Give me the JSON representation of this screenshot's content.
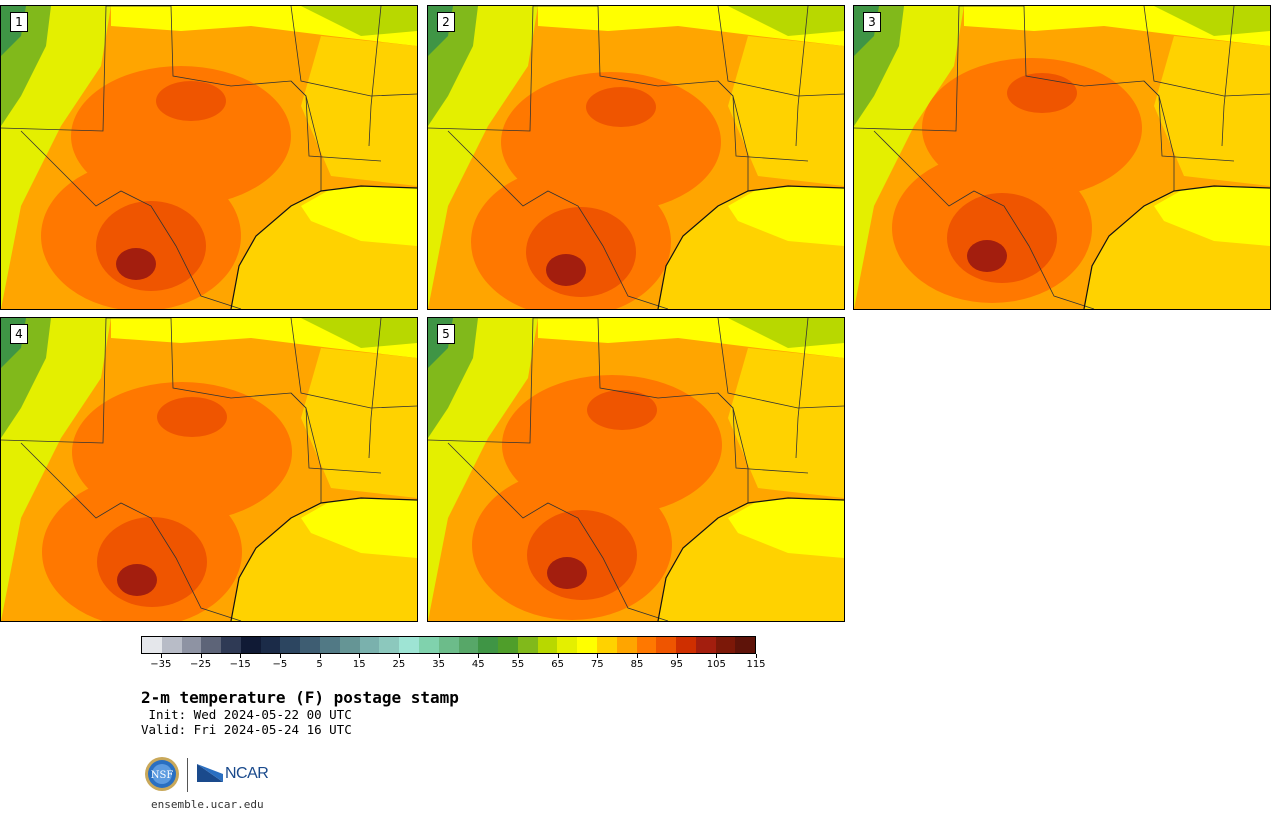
{
  "title": "2-m temperature (F) postage stamp",
  "init_text": " Init: Wed 2024-05-22 00 UTC",
  "valid_text": "Valid: Fri 2024-05-24 16 UTC",
  "site": "ensemble.ucar.edu",
  "logos": {
    "nsf": "NSF",
    "ncar": "NCAR"
  },
  "panels": [
    {
      "label": "1",
      "variant": 0
    },
    {
      "label": "2",
      "variant": 1
    },
    {
      "label": "3",
      "variant": 2
    },
    {
      "label": "4",
      "variant": 3
    },
    {
      "label": "5",
      "variant": 4
    }
  ],
  "colorbar": {
    "colors": [
      "#e5e7eb",
      "#b8bcc7",
      "#8e93a3",
      "#5d6478",
      "#2f3a55",
      "#101a35",
      "#1b2b48",
      "#2c4560",
      "#3e5d72",
      "#517985",
      "#659595",
      "#7ab1ad",
      "#8cc8bd",
      "#9ee4d4",
      "#80d2ad",
      "#6cbc8a",
      "#57a768",
      "#3f9545",
      "#4f9e2a",
      "#81b91b",
      "#b8d800",
      "#e4ef00",
      "#ffff00",
      "#ffd200",
      "#ffa500",
      "#ff7800",
      "#ef5500",
      "#cf2f00",
      "#a31e0e",
      "#7c1808",
      "#5e1309"
    ],
    "tick_labels": [
      "−35",
      "−25",
      "−15",
      "−5",
      "5",
      "15",
      "25",
      "35",
      "45",
      "55",
      "65",
      "75",
      "85",
      "95",
      "105",
      "115"
    ]
  }
}
